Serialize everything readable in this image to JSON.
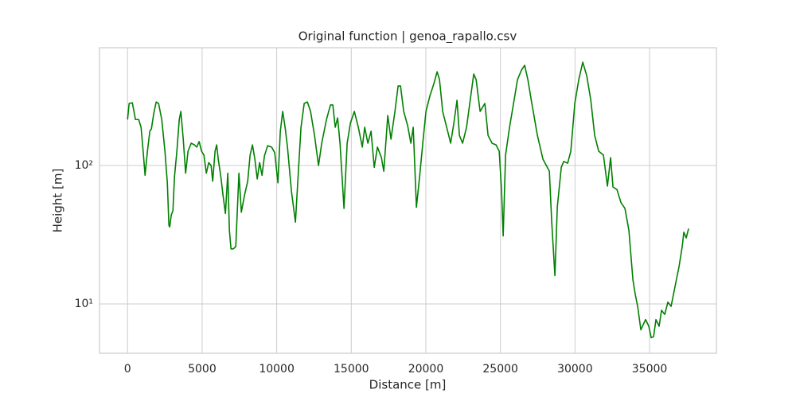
{
  "chart_data": {
    "type": "line",
    "title": "Original function | genoa_rapallo.csv",
    "xlabel": "Distance [m]",
    "ylabel": "Height [m]",
    "color": "#008000",
    "grid": true,
    "log_y": true,
    "xlim": [
      -1880,
      39480
    ],
    "ylim": [
      4.4,
      710
    ],
    "xticks": [
      0,
      5000,
      10000,
      15000,
      20000,
      25000,
      30000,
      35000
    ],
    "yticks": [
      {
        "value": 10,
        "label": "10¹"
      },
      {
        "value": 100,
        "label": "10²"
      }
    ],
    "x": [
      0,
      107,
      320,
      533,
      747,
      907,
      1067,
      1174,
      1334,
      1494,
      1600,
      1761,
      1921,
      2081,
      2294,
      2508,
      2668,
      2774,
      2828,
      2934,
      3041,
      3148,
      3308,
      3468,
      3575,
      3735,
      3895,
      4055,
      4268,
      4481,
      4641,
      4801,
      4962,
      5122,
      5282,
      5442,
      5602,
      5709,
      5869,
      5976,
      6082,
      6242,
      6402,
      6562,
      6722,
      6829,
      6936,
      7096,
      7256,
      7469,
      7629,
      7842,
      8056,
      8216,
      8376,
      8536,
      8696,
      8856,
      9016,
      9176,
      9389,
      9656,
      9869,
      10083,
      10243,
      10403,
      10563,
      10723,
      10990,
      11257,
      11470,
      11630,
      11844,
      12057,
      12270,
      12537,
      12804,
      13018,
      13338,
      13605,
      13765,
      13925,
      14085,
      14245,
      14512,
      14725,
      14939,
      15206,
      15473,
      15740,
      15900,
      16113,
      16327,
      16540,
      16754,
      17021,
      17181,
      17447,
      17661,
      17928,
      18141,
      18301,
      18515,
      18781,
      18995,
      19155,
      19368,
      19582,
      19795,
      20008,
      20275,
      20542,
      20755,
      20915,
      21129,
      21396,
      21662,
      21876,
      22090,
      22250,
      22463,
      22730,
      22944,
      23211,
      23371,
      23638,
      23958,
      24171,
      24438,
      24705,
      24918,
      25078,
      25185,
      25345,
      25612,
      25879,
      26146,
      26412,
      26626,
      26839,
      27106,
      27480,
      27853,
      28280,
      28440,
      28653,
      28813,
      29080,
      29240,
      29507,
      29720,
      29987,
      30254,
      30520,
      30787,
      31054,
      31320,
      31587,
      31907,
      32174,
      32387,
      32547,
      32814,
      33081,
      33348,
      33614,
      33881,
      34041,
      34201,
      34415,
      34575,
      34735,
      34948,
      35108,
      35268,
      35428,
      35641,
      35801,
      36015,
      36228,
      36442,
      36709,
      36975,
      37189,
      37296,
      37456,
      37616
    ],
    "values": [
      215,
      281,
      284,
      215,
      215,
      189,
      119,
      85,
      127,
      177,
      184,
      239,
      288,
      281,
      215,
      127,
      75,
      37,
      36,
      44,
      47,
      83,
      127,
      215,
      246,
      155,
      88,
      127,
      145,
      141,
      136,
      149,
      127,
      119,
      88,
      105,
      100,
      77,
      127,
      141,
      111,
      85,
      61,
      45,
      88,
      34,
      25,
      25,
      26,
      88,
      46,
      61,
      77,
      119,
      141,
      111,
      80,
      105,
      85,
      117,
      139,
      136,
      124,
      75,
      177,
      246,
      189,
      136,
      65,
      39,
      97,
      189,
      281,
      288,
      246,
      165,
      100,
      145,
      215,
      274,
      274,
      189,
      221,
      145,
      49,
      145,
      202,
      246,
      189,
      136,
      189,
      145,
      177,
      97,
      136,
      114,
      91,
      230,
      155,
      246,
      376,
      376,
      246,
      194,
      145,
      189,
      50,
      83,
      145,
      246,
      320,
      391,
      476,
      418,
      246,
      189,
      145,
      202,
      296,
      165,
      145,
      189,
      281,
      458,
      418,
      246,
      281,
      165,
      145,
      141,
      127,
      65,
      31,
      119,
      189,
      281,
      418,
      490,
      530,
      418,
      281,
      165,
      111,
      91,
      39,
      16,
      50,
      97,
      107,
      104,
      127,
      281,
      418,
      558,
      446,
      300,
      165,
      127,
      119,
      71,
      114,
      70,
      67,
      54,
      49,
      34,
      15,
      11.7,
      9.6,
      6.5,
      7.1,
      7.7,
      6.9,
      5.7,
      5.8,
      7.7,
      6.9,
      9.0,
      8.4,
      10.3,
      9.6,
      13.4,
      18.6,
      26,
      33,
      30,
      35
    ]
  }
}
